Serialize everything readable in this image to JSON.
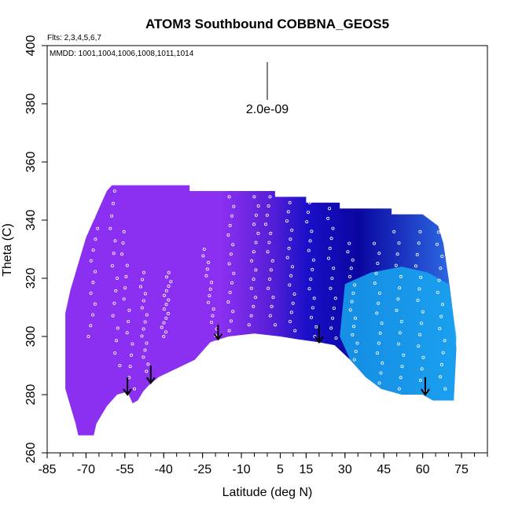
{
  "chart_data": {
    "type": "heatmap",
    "title": "ATOM3 Southbound COBBNA_GEOS5",
    "subtitle_flights": "Flts: 2,3,4,5,6,7",
    "subtitle_dates": "MMDD: 1001,1004,1006,1008,1011,1014",
    "xlabel": "Latitude (deg N)",
    "ylabel": "Theta (C)",
    "xlim": [
      -85,
      85
    ],
    "ylim": [
      260,
      400
    ],
    "x_ticks": [
      -85,
      -70,
      -55,
      -40,
      -25,
      -10,
      5,
      15,
      30,
      45,
      60,
      75
    ],
    "x_tick_labels": [
      "-85",
      "-70",
      "-55",
      "-40",
      "-25",
      "-10",
      "5",
      "15",
      "30",
      "45",
      "60",
      "75"
    ],
    "y_ticks": [
      260,
      280,
      300,
      320,
      340,
      360,
      380,
      400
    ],
    "y_tick_labels": [
      "260",
      "280",
      "300",
      "320",
      "340",
      "360",
      "380",
      "400"
    ],
    "scale_label": "2.0e-09",
    "colors": {
      "south": "#8b30f0",
      "mid": "#1a10c8",
      "deep": "#0a06a0",
      "north_low": "#18a8f0",
      "north_mid": "#2f6fe8",
      "arrow": "#000000",
      "sample_marker": "#ffffff"
    },
    "field_top": [
      {
        "x": -78,
        "y": 308
      },
      {
        "x": -76,
        "y": 316
      },
      {
        "x": -74,
        "y": 322
      },
      {
        "x": -72,
        "y": 328
      },
      {
        "x": -70,
        "y": 334
      },
      {
        "x": -68,
        "y": 338
      },
      {
        "x": -66,
        "y": 342
      },
      {
        "x": -64,
        "y": 346
      },
      {
        "x": -62,
        "y": 350
      },
      {
        "x": -60,
        "y": 352
      },
      {
        "x": -30,
        "y": 352
      },
      {
        "x": -30,
        "y": 350
      },
      {
        "x": -10,
        "y": 350
      },
      {
        "x": 3,
        "y": 350
      },
      {
        "x": 3,
        "y": 348
      },
      {
        "x": 15,
        "y": 348
      },
      {
        "x": 15,
        "y": 346
      },
      {
        "x": 28,
        "y": 346
      },
      {
        "x": 28,
        "y": 344
      },
      {
        "x": 48,
        "y": 344
      },
      {
        "x": 48,
        "y": 342
      },
      {
        "x": 60,
        "y": 342
      },
      {
        "x": 66,
        "y": 338
      },
      {
        "x": 68,
        "y": 332
      },
      {
        "x": 70,
        "y": 320
      },
      {
        "x": 72,
        "y": 306
      },
      {
        "x": 73,
        "y": 296
      }
    ],
    "field_bottom": [
      {
        "x": 73,
        "y": 296
      },
      {
        "x": 72,
        "y": 278
      },
      {
        "x": 64,
        "y": 278
      },
      {
        "x": 60,
        "y": 280
      },
      {
        "x": 52,
        "y": 280
      },
      {
        "x": 44,
        "y": 282
      },
      {
        "x": 38,
        "y": 286
      },
      {
        "x": 32,
        "y": 292
      },
      {
        "x": 26,
        "y": 297
      },
      {
        "x": 20,
        "y": 298
      },
      {
        "x": 12,
        "y": 299
      },
      {
        "x": 5,
        "y": 300
      },
      {
        "x": -5,
        "y": 301
      },
      {
        "x": -15,
        "y": 300
      },
      {
        "x": -22,
        "y": 298
      },
      {
        "x": -28,
        "y": 292
      },
      {
        "x": -35,
        "y": 289
      },
      {
        "x": -42,
        "y": 286
      },
      {
        "x": -46,
        "y": 283
      },
      {
        "x": -48,
        "y": 281
      },
      {
        "x": -50,
        "y": 278
      },
      {
        "x": -52,
        "y": 277
      },
      {
        "x": -54,
        "y": 281
      },
      {
        "x": -58,
        "y": 280
      },
      {
        "x": -62,
        "y": 276
      },
      {
        "x": -64,
        "y": 273
      },
      {
        "x": -66,
        "y": 270
      },
      {
        "x": -67,
        "y": 266
      },
      {
        "x": -73,
        "y": 266
      },
      {
        "x": -74,
        "y": 270
      },
      {
        "x": -76,
        "y": 276
      },
      {
        "x": -78,
        "y": 282
      },
      {
        "x": -78,
        "y": 308
      }
    ],
    "arrows": [
      {
        "x": -54,
        "y_top": 286,
        "y_tip": 280
      },
      {
        "x": -45,
        "y_top": 290,
        "y_tip": 284
      },
      {
        "x": -19,
        "y_top": 304,
        "y_tip": 299
      },
      {
        "x": 20,
        "y_top": 304,
        "y_tip": 298
      },
      {
        "x": 61,
        "y_top": 286,
        "y_tip": 280
      }
    ],
    "flight_tracks": [
      {
        "x0": -68,
        "y0": 300,
        "x1": -66,
        "y1": 352
      },
      {
        "x0": -58,
        "y0": 290,
        "x1": -60,
        "y1": 350
      },
      {
        "x0": -52,
        "y0": 282,
        "x1": -56,
        "y1": 336
      },
      {
        "x0": -47,
        "y0": 288,
        "x1": -48,
        "y1": 322
      },
      {
        "x0": -40,
        "y0": 300,
        "x1": -38,
        "y1": 322
      },
      {
        "x0": -20,
        "y0": 298,
        "x1": -24,
        "y1": 330
      },
      {
        "x0": -14,
        "y0": 302,
        "x1": -14,
        "y1": 348
      },
      {
        "x0": -6,
        "y0": 304,
        "x1": -4,
        "y1": 348
      },
      {
        "x0": 2,
        "y0": 304,
        "x1": 0,
        "y1": 348
      },
      {
        "x0": 10,
        "y0": 302,
        "x1": 8,
        "y1": 346
      },
      {
        "x0": 18,
        "y0": 300,
        "x1": 16,
        "y1": 346
      },
      {
        "x0": 26,
        "y0": 296,
        "x1": 24,
        "y1": 344
      },
      {
        "x0": 34,
        "y0": 292,
        "x1": 32,
        "y1": 332
      },
      {
        "x0": 44,
        "y0": 284,
        "x1": 42,
        "y1": 332
      },
      {
        "x0": 52,
        "y0": 282,
        "x1": 50,
        "y1": 336
      },
      {
        "x0": 60,
        "y0": 281,
        "x1": 58,
        "y1": 336
      },
      {
        "x0": 68,
        "y0": 282,
        "x1": 66,
        "y1": 340
      }
    ]
  }
}
